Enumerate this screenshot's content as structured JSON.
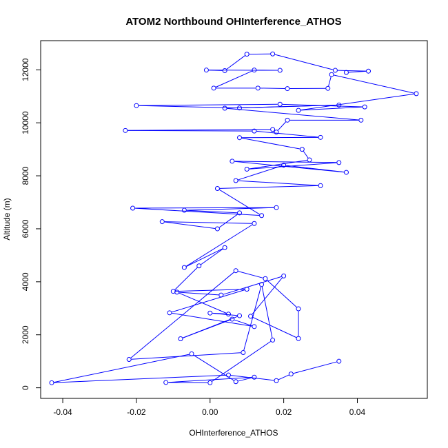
{
  "chart_data": {
    "type": "line",
    "title": "ATOM2 Northbound OHInterference_ATHOS",
    "xlabel": "OHInterference_ATHOS",
    "ylabel": "Altitude (m)",
    "xlim": [
      -0.046,
      0.059
    ],
    "ylim": [
      -400,
      13100
    ],
    "xticks": [
      -0.04,
      -0.02,
      0.0,
      0.02,
      0.04
    ],
    "xtick_labels": [
      "-0.04",
      "-0.02",
      "0.00",
      "0.02",
      "0.04"
    ],
    "yticks": [
      0,
      2000,
      4000,
      6000,
      8000,
      10000,
      12000
    ],
    "ytick_labels": [
      "0",
      "2000",
      "4000",
      "6000",
      "8000",
      "10000",
      "12000"
    ],
    "grid": false,
    "legend": "none",
    "series_color": "#0000FF",
    "series": [
      {
        "marker": "open-circle",
        "points": [
          [
            0.035,
            1000
          ],
          [
            0.022,
            520
          ],
          [
            0.018,
            270
          ],
          [
            0.005,
            480
          ],
          [
            -0.043,
            190
          ],
          [
            -0.005,
            1280
          ],
          [
            0.007,
            230
          ],
          [
            0.012,
            400
          ],
          [
            -0.012,
            200
          ],
          [
            0.0,
            190
          ],
          [
            0.017,
            1800
          ],
          [
            0.014,
            3900
          ],
          [
            0.009,
            1330
          ],
          [
            -0.022,
            1070
          ],
          [
            0.007,
            4420
          ],
          [
            0.015,
            4120
          ],
          [
            0.024,
            2980
          ],
          [
            0.024,
            1860
          ],
          [
            0.011,
            2700
          ],
          [
            0.02,
            4220
          ],
          [
            0.003,
            3500
          ],
          [
            -0.009,
            3610
          ],
          [
            0.005,
            2780
          ],
          [
            0.0,
            2820
          ],
          [
            0.008,
            2720
          ],
          [
            -0.008,
            1850
          ],
          [
            0.006,
            2590
          ],
          [
            0.012,
            2310
          ],
          [
            -0.011,
            2830
          ],
          [
            0.01,
            3720
          ],
          [
            -0.01,
            3640
          ],
          [
            -0.003,
            4600
          ],
          [
            0.004,
            5290
          ],
          [
            -0.007,
            4540
          ],
          [
            0.012,
            6200
          ],
          [
            -0.013,
            6270
          ],
          [
            0.002,
            6000
          ],
          [
            0.008,
            6600
          ],
          [
            -0.007,
            6700
          ],
          [
            0.018,
            6800
          ],
          [
            -0.021,
            6780
          ],
          [
            0.014,
            6500
          ],
          [
            0.002,
            7520
          ],
          [
            0.03,
            7630
          ],
          [
            0.007,
            7820
          ],
          [
            0.02,
            8400
          ],
          [
            0.037,
            8130
          ],
          [
            0.006,
            8550
          ],
          [
            0.035,
            8500
          ],
          [
            0.01,
            8250
          ],
          [
            0.027,
            8600
          ],
          [
            0.025,
            9000
          ],
          [
            0.008,
            9440
          ],
          [
            0.03,
            9450
          ],
          [
            0.012,
            9690
          ],
          [
            -0.023,
            9710
          ],
          [
            0.017,
            9750
          ],
          [
            0.018,
            9650
          ],
          [
            0.021,
            10100
          ],
          [
            0.041,
            10100
          ],
          [
            0.004,
            10550
          ],
          [
            0.035,
            10670
          ],
          [
            0.008,
            10560
          ],
          [
            -0.02,
            10650
          ],
          [
            0.019,
            10700
          ],
          [
            0.042,
            10600
          ],
          [
            0.024,
            10470
          ],
          [
            0.056,
            11100
          ],
          [
            0.033,
            11820
          ],
          [
            0.032,
            11300
          ],
          [
            0.021,
            11290
          ],
          [
            0.013,
            11310
          ],
          [
            0.001,
            11310
          ],
          [
            0.012,
            11990
          ],
          [
            0.019,
            11980
          ],
          [
            -0.001,
            11990
          ],
          [
            0.004,
            11970
          ],
          [
            0.01,
            12590
          ],
          [
            0.017,
            12600
          ],
          [
            0.034,
            11980
          ],
          [
            0.043,
            11950
          ],
          [
            0.037,
            11900
          ]
        ]
      }
    ]
  }
}
